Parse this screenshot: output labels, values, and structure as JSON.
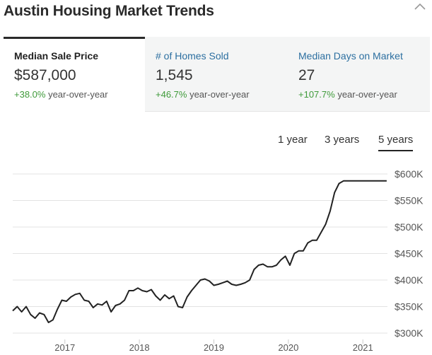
{
  "header": {
    "title": "Austin Housing Market Trends",
    "collapse_icon": "chevron-up-icon"
  },
  "tabs": [
    {
      "label": "Median Sale Price",
      "value": "$587,000",
      "change": "+38.0%",
      "change_suffix": "year-over-year",
      "active": true
    },
    {
      "label": "# of Homes Sold",
      "value": "1,545",
      "change": "+46.7%",
      "change_suffix": "year-over-year",
      "active": false
    },
    {
      "label": "Median Days on Market",
      "value": "27",
      "change": "+107.7%",
      "change_suffix": "year-over-year",
      "active": false
    }
  ],
  "ranges": [
    {
      "label": "1 year",
      "active": false
    },
    {
      "label": "3 years",
      "active": false
    },
    {
      "label": "5 years",
      "active": true
    }
  ],
  "colors": {
    "accent": "#2c6fa0",
    "positive": "#3f9a3a",
    "line": "#222222",
    "grid": "#e3e3e3"
  },
  "chart_data": {
    "type": "line",
    "title": "Median Sale Price",
    "xlabel": "",
    "ylabel": "",
    "x_ticks": [
      "2017",
      "2018",
      "2019",
      "2020",
      "2021"
    ],
    "y_ticks": [
      "$300K",
      "$350K",
      "$400K",
      "$450K",
      "$500K",
      "$550K",
      "$600K"
    ],
    "ylim": [
      300000,
      600000
    ],
    "xlim": [
      2016.3,
      2021.33
    ],
    "grid": true,
    "series": [
      {
        "name": "Median Sale Price",
        "x": [
          2016.3,
          2016.36,
          2016.42,
          2016.48,
          2016.54,
          2016.6,
          2016.66,
          2016.72,
          2016.78,
          2016.84,
          2016.9,
          2016.96,
          2017.02,
          2017.08,
          2017.14,
          2017.2,
          2017.26,
          2017.32,
          2017.38,
          2017.44,
          2017.5,
          2017.56,
          2017.62,
          2017.68,
          2017.74,
          2017.8,
          2017.86,
          2017.92,
          2017.98,
          2018.04,
          2018.1,
          2018.16,
          2018.22,
          2018.28,
          2018.34,
          2018.4,
          2018.46,
          2018.52,
          2018.58,
          2018.64,
          2018.7,
          2018.76,
          2018.82,
          2018.88,
          2018.94,
          2019.0,
          2019.06,
          2019.12,
          2019.18,
          2019.24,
          2019.3,
          2019.36,
          2019.42,
          2019.48,
          2019.54,
          2019.6,
          2019.66,
          2019.72,
          2019.78,
          2019.84,
          2019.9,
          2019.96,
          2020.02,
          2020.08,
          2020.14,
          2020.2,
          2020.26,
          2020.32,
          2020.38,
          2020.44,
          2020.5,
          2020.56,
          2020.62,
          2020.68,
          2020.74,
          2020.8,
          2020.86,
          2020.92,
          2020.98,
          2021.04,
          2021.1,
          2021.16,
          2021.22,
          2021.28,
          2021.32
        ],
        "y": [
          342000,
          350000,
          340000,
          350000,
          335000,
          328000,
          338000,
          335000,
          320000,
          325000,
          345000,
          362000,
          360000,
          368000,
          373000,
          375000,
          362000,
          360000,
          348000,
          355000,
          353000,
          360000,
          340000,
          352000,
          355000,
          362000,
          380000,
          380000,
          385000,
          380000,
          378000,
          382000,
          370000,
          362000,
          372000,
          365000,
          370000,
          350000,
          348000,
          368000,
          380000,
          390000,
          400000,
          402000,
          398000,
          390000,
          392000,
          395000,
          398000,
          392000,
          390000,
          392000,
          395000,
          400000,
          420000,
          428000,
          430000,
          425000,
          425000,
          428000,
          438000,
          445000,
          428000,
          450000,
          455000,
          455000,
          470000,
          475000,
          475000,
          490000,
          505000,
          530000,
          565000,
          582000,
          587000,
          587000,
          587000,
          587000,
          587000,
          587000,
          587000,
          587000,
          587000,
          587000,
          587000
        ]
      }
    ]
  }
}
